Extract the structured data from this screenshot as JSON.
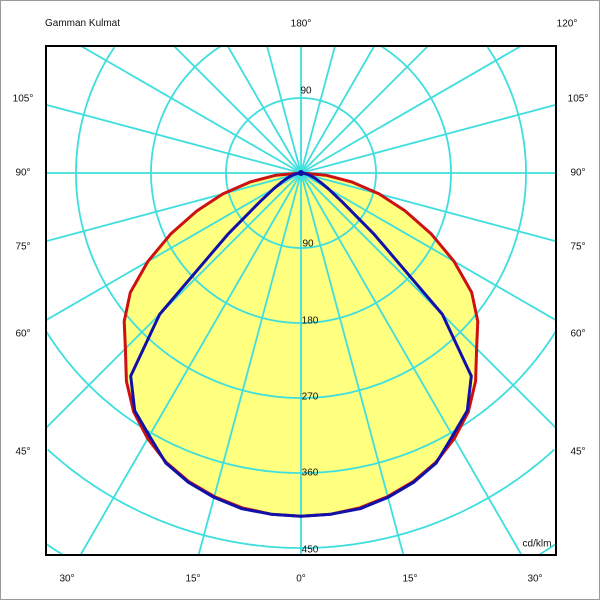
{
  "chart_data": {
    "type": "polar",
    "title": "Gamman Kulmat",
    "unit_label": "cd/klm",
    "radial_ticks": [
      "90",
      "90",
      "180",
      "270",
      "360",
      "450"
    ],
    "radial_values": [
      90,
      180,
      270,
      360,
      450
    ],
    "angle_labels": {
      "top": [
        "180°",
        "120°"
      ],
      "left": [
        "105°",
        "90°",
        "75°",
        "60°",
        "45°"
      ],
      "right": [
        "105°",
        "90°",
        "75°",
        "60°",
        "45°"
      ],
      "bottom": [
        "30°",
        "15°",
        "0°",
        "15°",
        "30°"
      ]
    },
    "angle_grid_step_deg": 15,
    "grid": true,
    "colors": {
      "grid": "#3fdede",
      "fill": "#ffff80",
      "series_red": "#cc1111",
      "series_blue": "#1111aa",
      "frame": "#000000"
    },
    "angles_deg": [
      0,
      5,
      10,
      15,
      20,
      25,
      30,
      35,
      40,
      45,
      50,
      55,
      60,
      65,
      70,
      75,
      80,
      85,
      90
    ],
    "series": [
      {
        "color": "#cc1111",
        "values": [
          412,
          411,
          408,
          402,
          394,
          383,
          368,
          350,
          326,
          298,
          277,
          250,
          212,
          172,
          133,
          97,
          62,
          30,
          0
        ]
      },
      {
        "color": "#1111aa",
        "values": [
          412,
          411,
          409,
          403,
          395,
          384,
          364,
          348,
          318,
          240,
          115,
          60,
          38,
          25,
          17,
          11,
          6,
          3,
          0
        ]
      }
    ]
  }
}
